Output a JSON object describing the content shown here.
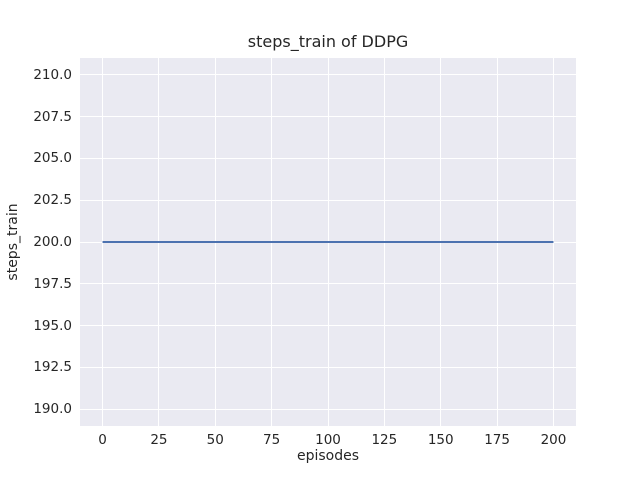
{
  "chart_data": {
    "type": "line",
    "title": "steps_train of DDPG",
    "xlabel": "episodes",
    "ylabel": "steps_train",
    "xlim": [
      -10,
      210
    ],
    "ylim": [
      189,
      211
    ],
    "grid": true,
    "legend": false,
    "x_ticks": {
      "values": [
        0,
        25,
        50,
        75,
        100,
        125,
        150,
        175,
        200
      ],
      "labels": [
        "0",
        "25",
        "50",
        "75",
        "100",
        "125",
        "150",
        "175",
        "200"
      ]
    },
    "y_ticks": {
      "values": [
        190,
        192.5,
        195,
        197.5,
        200,
        202.5,
        205,
        207.5,
        210
      ],
      "labels": [
        "190.0",
        "192.5",
        "195.0",
        "197.5",
        "200.0",
        "202.5",
        "205.0",
        "207.5",
        "210.0"
      ]
    },
    "series": [
      {
        "name": "steps_train",
        "color": "#4c72b0",
        "line_width": 2,
        "x": [
          0,
          200
        ],
        "y": [
          200,
          200
        ],
        "note": "constant line at steps_train = 200 across episodes 0 to 200"
      }
    ],
    "colors": {
      "figure_background": "#ffffff",
      "plot_background": "#eaeaf2",
      "gridline": "#ffffff",
      "text": "#262626"
    }
  }
}
